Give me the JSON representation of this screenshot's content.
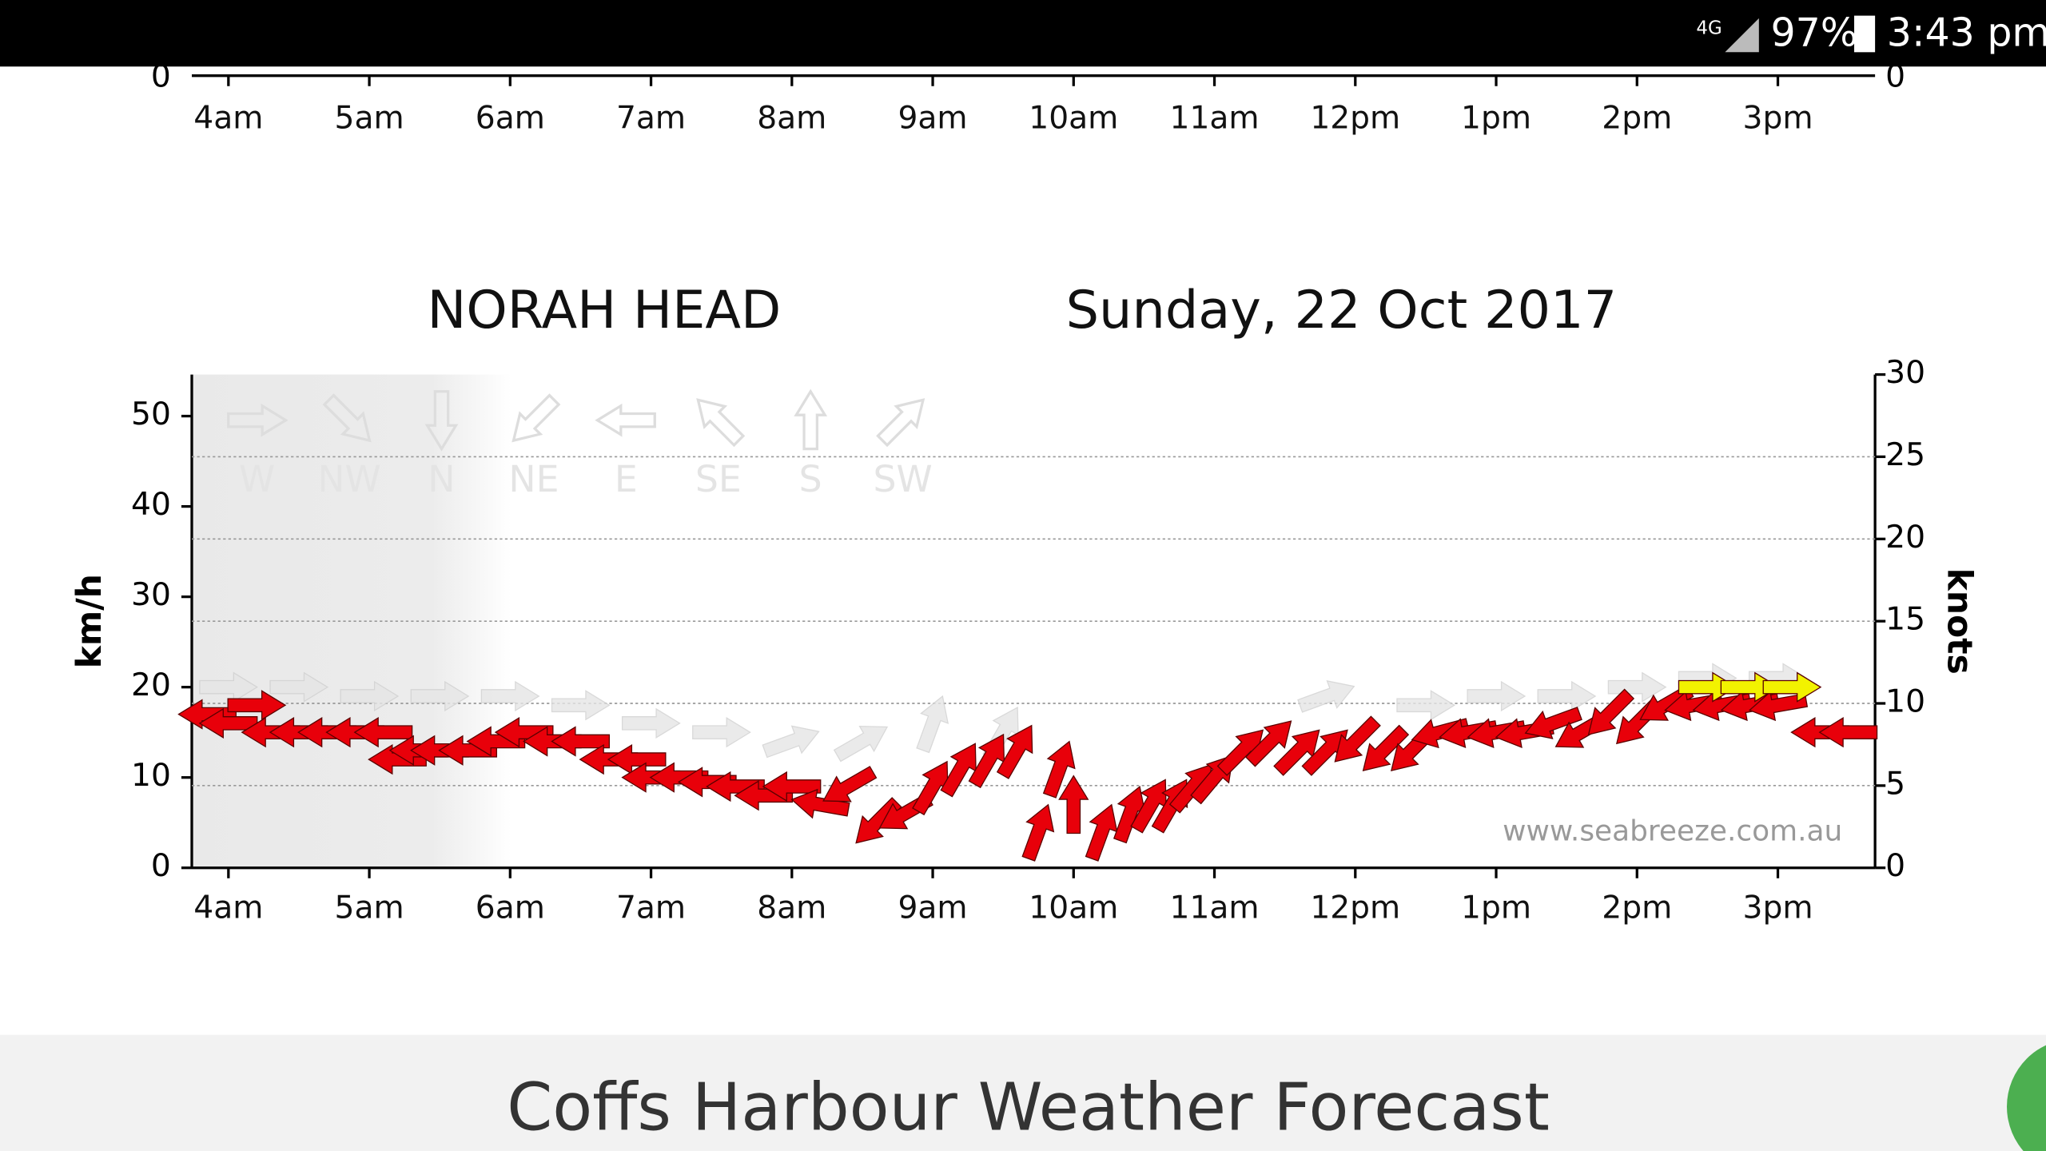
{
  "status_bar": {
    "network": "4G",
    "battery": "97%",
    "time": "3:43 pm"
  },
  "partial_chart": {
    "xlim": [
      3.74,
      15.69
    ],
    "xticks": [
      {
        "value": 4,
        "label": "4am"
      },
      {
        "value": 5,
        "label": "5am"
      },
      {
        "value": 6,
        "label": "6am"
      },
      {
        "value": 7,
        "label": "7am"
      },
      {
        "value": 8,
        "label": "8am"
      },
      {
        "value": 9,
        "label": "9am"
      },
      {
        "value": 10,
        "label": "10am"
      },
      {
        "value": 11,
        "label": "11am"
      },
      {
        "value": 12,
        "label": "12pm"
      },
      {
        "value": 13,
        "label": "1pm"
      },
      {
        "value": 14,
        "label": "2pm"
      },
      {
        "value": 15,
        "label": "3pm"
      }
    ],
    "yticks": [
      0
    ],
    "y2ticks": [
      0
    ]
  },
  "chart_data": {
    "type": "wind",
    "title": "NORAH HEAD",
    "subtitle": "Sunday, 22 Oct 2017",
    "y_label": "km/h",
    "y2_label": "knots",
    "watermark": "www.seabreeze.com.au",
    "xlim": [
      3.74,
      15.69
    ],
    "xticks": [
      {
        "value": 4,
        "label": "4am"
      },
      {
        "value": 5,
        "label": "5am"
      },
      {
        "value": 6,
        "label": "6am"
      },
      {
        "value": 7,
        "label": "7am"
      },
      {
        "value": 8,
        "label": "8am"
      },
      {
        "value": 9,
        "label": "9am"
      },
      {
        "value": 10,
        "label": "10am"
      },
      {
        "value": 11,
        "label": "11am"
      },
      {
        "value": 12,
        "label": "12pm"
      },
      {
        "value": 13,
        "label": "1pm"
      },
      {
        "value": 14,
        "label": "2pm"
      },
      {
        "value": 15,
        "label": "3pm"
      }
    ],
    "ylim": [
      0,
      54.6
    ],
    "yticks": [
      0,
      10,
      20,
      30,
      40,
      50
    ],
    "y2lim": [
      0,
      30
    ],
    "y2ticks": [
      0,
      5,
      10,
      15,
      20,
      25,
      30
    ],
    "grid": "y2",
    "legend": {
      "labels": [
        "W",
        "NW",
        "N",
        "NE",
        "E",
        "SE",
        "S",
        "SW"
      ],
      "directions": [
        270,
        315,
        0,
        45,
        90,
        135,
        180,
        225
      ]
    },
    "series": [
      {
        "color": "#e6e6e6",
        "x": [
          4.0,
          4.5,
          5.0,
          5.5,
          6.0,
          6.5,
          7.0,
          7.5,
          8.0,
          8.5,
          9.0,
          9.5,
          11.8,
          12.5,
          13.0,
          13.5,
          14.0,
          14.5,
          15.0
        ],
        "values": [
          20,
          20,
          19,
          19,
          19,
          18,
          16,
          15,
          14,
          14,
          16,
          15,
          19,
          18,
          19,
          19,
          20,
          21,
          21
        ],
        "directions": [
          270,
          270,
          270,
          270,
          270,
          270,
          270,
          270,
          250,
          240,
          200,
          210,
          250,
          270,
          270,
          270,
          270,
          270,
          270
        ]
      },
      {
        "color": "#e8000a",
        "x": [
          3.85,
          4.0,
          4.2,
          4.3,
          4.5,
          4.7,
          4.9,
          5.1,
          5.2,
          5.35,
          5.5,
          5.7,
          5.9,
          6.1,
          6.3,
          6.5,
          6.7,
          6.9,
          7.0,
          7.2,
          7.4,
          7.6,
          7.8,
          8.0,
          8.2,
          8.4,
          8.6,
          8.8,
          9.0,
          9.2,
          9.4,
          9.6,
          9.75,
          9.9,
          10.0,
          10.2,
          10.4,
          10.55,
          10.7,
          10.85,
          11.0,
          11.2,
          11.4,
          11.6,
          11.8,
          12.0,
          12.2,
          12.4,
          12.6,
          12.8,
          13.0,
          13.2,
          13.4,
          13.6,
          13.8,
          14.0,
          14.2,
          14.4,
          14.6,
          14.8,
          15.0,
          15.3,
          15.5
        ],
        "values": [
          17,
          16,
          18,
          15,
          15,
          15,
          15,
          15,
          12,
          13,
          13,
          13,
          14,
          15,
          14,
          14,
          12,
          12,
          10,
          10,
          9.5,
          9,
          8,
          9,
          7,
          9,
          5,
          6,
          9,
          11,
          12,
          13,
          4,
          11,
          7,
          4,
          6,
          7,
          7,
          9,
          10,
          13,
          14,
          13,
          13,
          14,
          13,
          13,
          15,
          15,
          15,
          15,
          16,
          15,
          17,
          16,
          18,
          18,
          18,
          18,
          18,
          15,
          15
        ],
        "directions": [
          90,
          90,
          270,
          90,
          90,
          90,
          90,
          90,
          90,
          90,
          90,
          90,
          90,
          90,
          90,
          90,
          90,
          90,
          90,
          90,
          90,
          90,
          90,
          90,
          100,
          60,
          45,
          60,
          210,
          210,
          210,
          210,
          200,
          200,
          180,
          200,
          200,
          210,
          210,
          220,
          220,
          225,
          225,
          225,
          225,
          45,
          45,
          45,
          75,
          80,
          80,
          80,
          70,
          60,
          45,
          45,
          60,
          80,
          80,
          80,
          80,
          90,
          90
        ]
      },
      {
        "color": "#f2f200",
        "x": [
          14.5,
          14.8,
          15.1
        ],
        "values": [
          20,
          20,
          20
        ],
        "directions": [
          270,
          270,
          270
        ]
      }
    ]
  },
  "footer": {
    "title": "Coffs Harbour Weather Forecast"
  }
}
